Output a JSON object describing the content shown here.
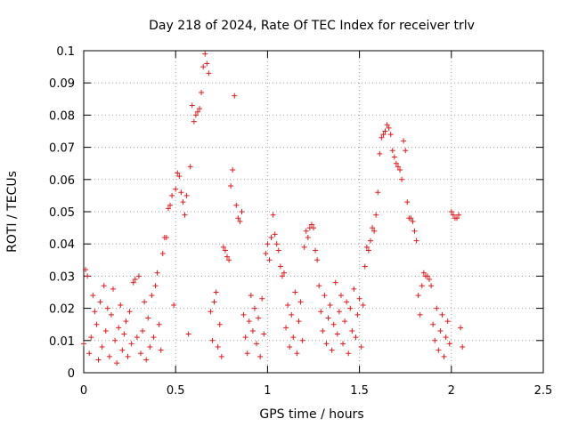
{
  "chart_data": {
    "type": "scatter",
    "title": "Day 218 of 2024, Rate Of TEC Index for receiver trlv",
    "xlabel": "GPS time / hours",
    "ylabel": "ROTI / TECUs",
    "xlim": [
      0,
      2.5
    ],
    "ylim": [
      0,
      0.1
    ],
    "x_ticks": [
      0,
      0.5,
      1,
      1.5,
      2,
      2.5
    ],
    "x_tick_labels": [
      "0",
      "0.5",
      "1",
      "1.5",
      "2",
      "2.5"
    ],
    "y_ticks": [
      0,
      0.01,
      0.02,
      0.03,
      0.04,
      0.05,
      0.06,
      0.07,
      0.08,
      0.09,
      0.1
    ],
    "y_tick_labels": [
      "0",
      "0.01",
      "0.02",
      "0.03",
      "0.04",
      "0.05",
      "0.06",
      "0.07",
      "0.08",
      "0.09",
      "0.1"
    ],
    "grid": true,
    "marker": "+",
    "marker_color": "#e41a1c",
    "series": [
      {
        "name": "ROTI",
        "points": [
          [
            0.0,
            0.009
          ],
          [
            0.01,
            0.032
          ],
          [
            0.02,
            0.03
          ],
          [
            0.03,
            0.006
          ],
          [
            0.04,
            0.011
          ],
          [
            0.05,
            0.024
          ],
          [
            0.06,
            0.019
          ],
          [
            0.07,
            0.015
          ],
          [
            0.08,
            0.004
          ],
          [
            0.09,
            0.022
          ],
          [
            0.1,
            0.008
          ],
          [
            0.11,
            0.027
          ],
          [
            0.12,
            0.013
          ],
          [
            0.13,
            0.02
          ],
          [
            0.14,
            0.005
          ],
          [
            0.15,
            0.018
          ],
          [
            0.16,
            0.026
          ],
          [
            0.17,
            0.01
          ],
          [
            0.18,
            0.003
          ],
          [
            0.19,
            0.014
          ],
          [
            0.2,
            0.021
          ],
          [
            0.21,
            0.007
          ],
          [
            0.22,
            0.012
          ],
          [
            0.23,
            0.016
          ],
          [
            0.24,
            0.005
          ],
          [
            0.25,
            0.019
          ],
          [
            0.26,
            0.009
          ],
          [
            0.27,
            0.028
          ],
          [
            0.28,
            0.029
          ],
          [
            0.29,
            0.011
          ],
          [
            0.3,
            0.03
          ],
          [
            0.31,
            0.006
          ],
          [
            0.32,
            0.013
          ],
          [
            0.33,
            0.022
          ],
          [
            0.34,
            0.004
          ],
          [
            0.35,
            0.017
          ],
          [
            0.36,
            0.008
          ],
          [
            0.37,
            0.024
          ],
          [
            0.38,
            0.011
          ],
          [
            0.39,
            0.027
          ],
          [
            0.4,
            0.031
          ],
          [
            0.41,
            0.015
          ],
          [
            0.42,
            0.007
          ],
          [
            0.43,
            0.037
          ],
          [
            0.44,
            0.042
          ],
          [
            0.45,
            0.042
          ],
          [
            0.46,
            0.051
          ],
          [
            0.47,
            0.052
          ],
          [
            0.48,
            0.055
          ],
          [
            0.49,
            0.021
          ],
          [
            0.5,
            0.057
          ],
          [
            0.51,
            0.062
          ],
          [
            0.52,
            0.061
          ],
          [
            0.53,
            0.056
          ],
          [
            0.54,
            0.053
          ],
          [
            0.55,
            0.049
          ],
          [
            0.56,
            0.055
          ],
          [
            0.57,
            0.012
          ],
          [
            0.58,
            0.064
          ],
          [
            0.59,
            0.083
          ],
          [
            0.6,
            0.078
          ],
          [
            0.61,
            0.08
          ],
          [
            0.62,
            0.081
          ],
          [
            0.63,
            0.082
          ],
          [
            0.64,
            0.087
          ],
          [
            0.65,
            0.095
          ],
          [
            0.66,
            0.099
          ],
          [
            0.67,
            0.096
          ],
          [
            0.68,
            0.093
          ],
          [
            0.69,
            0.019
          ],
          [
            0.7,
            0.01
          ],
          [
            0.71,
            0.022
          ],
          [
            0.72,
            0.025
          ],
          [
            0.73,
            0.008
          ],
          [
            0.74,
            0.015
          ],
          [
            0.75,
            0.005
          ],
          [
            0.76,
            0.039
          ],
          [
            0.77,
            0.038
          ],
          [
            0.78,
            0.036
          ],
          [
            0.79,
            0.035
          ],
          [
            0.8,
            0.058
          ],
          [
            0.81,
            0.063
          ],
          [
            0.82,
            0.086
          ],
          [
            0.83,
            0.052
          ],
          [
            0.84,
            0.048
          ],
          [
            0.85,
            0.047
          ],
          [
            0.86,
            0.05
          ],
          [
            0.87,
            0.018
          ],
          [
            0.88,
            0.011
          ],
          [
            0.89,
            0.006
          ],
          [
            0.9,
            0.016
          ],
          [
            0.91,
            0.024
          ],
          [
            0.92,
            0.013
          ],
          [
            0.93,
            0.02
          ],
          [
            0.94,
            0.009
          ],
          [
            0.95,
            0.017
          ],
          [
            0.96,
            0.005
          ],
          [
            0.97,
            0.023
          ],
          [
            0.98,
            0.012
          ],
          [
            0.99,
            0.037
          ],
          [
            1.0,
            0.04
          ],
          [
            1.01,
            0.035
          ],
          [
            1.02,
            0.042
          ],
          [
            1.03,
            0.049
          ],
          [
            1.04,
            0.043
          ],
          [
            1.05,
            0.04
          ],
          [
            1.06,
            0.038
          ],
          [
            1.07,
            0.033
          ],
          [
            1.08,
            0.03
          ],
          [
            1.09,
            0.031
          ],
          [
            1.1,
            0.014
          ],
          [
            1.11,
            0.021
          ],
          [
            1.12,
            0.008
          ],
          [
            1.13,
            0.018
          ],
          [
            1.14,
            0.011
          ],
          [
            1.15,
            0.025
          ],
          [
            1.16,
            0.006
          ],
          [
            1.17,
            0.016
          ],
          [
            1.18,
            0.022
          ],
          [
            1.19,
            0.01
          ],
          [
            1.2,
            0.039
          ],
          [
            1.21,
            0.044
          ],
          [
            1.22,
            0.042
          ],
          [
            1.23,
            0.045
          ],
          [
            1.24,
            0.046
          ],
          [
            1.25,
            0.045
          ],
          [
            1.26,
            0.038
          ],
          [
            1.27,
            0.035
          ],
          [
            1.28,
            0.027
          ],
          [
            1.29,
            0.019
          ],
          [
            1.3,
            0.013
          ],
          [
            1.31,
            0.024
          ],
          [
            1.32,
            0.009
          ],
          [
            1.33,
            0.017
          ],
          [
            1.34,
            0.021
          ],
          [
            1.35,
            0.007
          ],
          [
            1.36,
            0.015
          ],
          [
            1.37,
            0.028
          ],
          [
            1.38,
            0.012
          ],
          [
            1.39,
            0.019
          ],
          [
            1.4,
            0.024
          ],
          [
            1.41,
            0.009
          ],
          [
            1.42,
            0.016
          ],
          [
            1.43,
            0.022
          ],
          [
            1.44,
            0.006
          ],
          [
            1.45,
            0.02
          ],
          [
            1.46,
            0.013
          ],
          [
            1.47,
            0.026
          ],
          [
            1.48,
            0.011
          ],
          [
            1.49,
            0.018
          ],
          [
            1.5,
            0.023
          ],
          [
            1.51,
            0.008
          ],
          [
            1.52,
            0.021
          ],
          [
            1.53,
            0.033
          ],
          [
            1.54,
            0.039
          ],
          [
            1.55,
            0.038
          ],
          [
            1.56,
            0.041
          ],
          [
            1.57,
            0.045
          ],
          [
            1.58,
            0.044
          ],
          [
            1.59,
            0.049
          ],
          [
            1.6,
            0.056
          ],
          [
            1.61,
            0.068
          ],
          [
            1.62,
            0.073
          ],
          [
            1.63,
            0.074
          ],
          [
            1.64,
            0.075
          ],
          [
            1.65,
            0.077
          ],
          [
            1.66,
            0.076
          ],
          [
            1.67,
            0.074
          ],
          [
            1.68,
            0.069
          ],
          [
            1.69,
            0.067
          ],
          [
            1.7,
            0.065
          ],
          [
            1.71,
            0.064
          ],
          [
            1.72,
            0.063
          ],
          [
            1.73,
            0.06
          ],
          [
            1.74,
            0.072
          ],
          [
            1.75,
            0.069
          ],
          [
            1.76,
            0.053
          ],
          [
            1.77,
            0.048
          ],
          [
            1.78,
            0.048
          ],
          [
            1.79,
            0.047
          ],
          [
            1.8,
            0.044
          ],
          [
            1.81,
            0.041
          ],
          [
            1.82,
            0.024
          ],
          [
            1.83,
            0.018
          ],
          [
            1.84,
            0.027
          ],
          [
            1.85,
            0.031
          ],
          [
            1.86,
            0.03
          ],
          [
            1.87,
            0.03
          ],
          [
            1.88,
            0.029
          ],
          [
            1.89,
            0.027
          ],
          [
            1.9,
            0.015
          ],
          [
            1.91,
            0.01
          ],
          [
            1.92,
            0.02
          ],
          [
            1.93,
            0.007
          ],
          [
            1.94,
            0.013
          ],
          [
            1.95,
            0.018
          ],
          [
            1.96,
            0.005
          ],
          [
            1.97,
            0.011
          ],
          [
            1.98,
            0.016
          ],
          [
            1.99,
            0.009
          ],
          [
            2.0,
            0.05
          ],
          [
            2.01,
            0.049
          ],
          [
            2.02,
            0.048
          ],
          [
            2.03,
            0.048
          ],
          [
            2.04,
            0.049
          ],
          [
            2.05,
            0.014
          ],
          [
            2.06,
            0.008
          ]
        ]
      }
    ]
  }
}
